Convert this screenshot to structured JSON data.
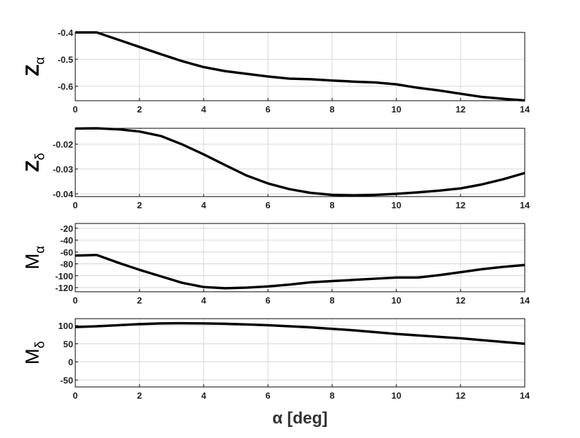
{
  "chart_data": [
    {
      "type": "line",
      "ylabel": "Z",
      "ylabel_sub": "α",
      "x": [
        0,
        0.667,
        1.333,
        2,
        2.667,
        3.333,
        4,
        4.667,
        5.333,
        6,
        6.667,
        7.333,
        8,
        8.667,
        9.333,
        10,
        10.667,
        11.333,
        12,
        12.667,
        13.333,
        14
      ],
      "series": [
        {
          "color": "#000000",
          "values": [
            -0.4,
            -0.4,
            -0.427,
            -0.454,
            -0.481,
            -0.507,
            -0.529,
            -0.544,
            -0.554,
            -0.564,
            -0.572,
            -0.574,
            -0.579,
            -0.583,
            -0.586,
            -0.593,
            -0.606,
            -0.616,
            -0.628,
            -0.64,
            -0.647,
            -0.653
          ]
        }
      ],
      "xlim": [
        0,
        14
      ],
      "xticks": [
        0,
        2,
        4,
        6,
        8,
        10,
        12,
        14
      ],
      "ylim": [
        -0.654,
        -0.4
      ],
      "yticks": [
        -0.6,
        -0.5,
        -0.4
      ],
      "grid": true
    },
    {
      "type": "line",
      "ylabel": "Z",
      "ylabel_sub": "δ",
      "x": [
        0,
        0.667,
        1.333,
        2,
        2.667,
        3.333,
        4,
        4.667,
        5.333,
        6,
        6.667,
        7.333,
        8,
        8.667,
        9.333,
        10,
        10.667,
        11.333,
        12,
        12.667,
        13.333,
        14
      ],
      "series": [
        {
          "color": "#000000",
          "values": [
            -0.0137,
            -0.0136,
            -0.014,
            -0.0149,
            -0.0167,
            -0.0201,
            -0.0241,
            -0.0284,
            -0.0326,
            -0.0358,
            -0.0381,
            -0.0396,
            -0.0404,
            -0.0406,
            -0.0404,
            -0.04,
            -0.0394,
            -0.0387,
            -0.0378,
            -0.0362,
            -0.0341,
            -0.0316
          ]
        }
      ],
      "xlim": [
        0,
        14
      ],
      "xticks": [
        0,
        2,
        4,
        6,
        8,
        10,
        12,
        14
      ],
      "ylim": [
        -0.0411,
        -0.0136
      ],
      "yticks": [
        -0.04,
        -0.03,
        -0.02
      ],
      "grid": true
    },
    {
      "type": "line",
      "ylabel": "M",
      "ylabel_sub": "α",
      "x": [
        0,
        0.667,
        1.333,
        2,
        2.667,
        3.333,
        4,
        4.667,
        5.333,
        6,
        6.667,
        7.333,
        8,
        8.667,
        9.333,
        10,
        10.667,
        11.333,
        12,
        12.667,
        13.333,
        14
      ],
      "series": [
        {
          "color": "#000000",
          "values": [
            -66,
            -65,
            -78,
            -90,
            -101,
            -112,
            -119,
            -121,
            -120,
            -118,
            -115,
            -111,
            -109,
            -107,
            -105,
            -103,
            -103,
            -99,
            -94,
            -89,
            -85,
            -82
          ]
        }
      ],
      "xlim": [
        0,
        14
      ],
      "xticks": [
        0,
        2,
        4,
        6,
        8,
        10,
        12,
        14
      ],
      "ylim": [
        -127,
        -12
      ],
      "yticks": [
        -120,
        -100,
        -80,
        -60,
        -40,
        -20
      ],
      "grid": true
    },
    {
      "type": "line",
      "ylabel": "M",
      "ylabel_sub": "δ",
      "xlabel": "α [deg]",
      "x": [
        0,
        0.667,
        1.333,
        2,
        2.667,
        3.333,
        4,
        4.667,
        5.333,
        6,
        6.667,
        7.333,
        8,
        8.667,
        9.333,
        10,
        10.667,
        11.333,
        12,
        12.667,
        13.333,
        14
      ],
      "series": [
        {
          "color": "#000000",
          "values": [
            96,
            98,
            101,
            104,
            106,
            106.5,
            106,
            105,
            103,
            101,
            98,
            95,
            91,
            87,
            82,
            77,
            73,
            69,
            65,
            60,
            55,
            50
          ]
        }
      ],
      "xlim": [
        0,
        14
      ],
      "xticks": [
        0,
        2,
        4,
        6,
        8,
        10,
        12,
        14
      ],
      "ylim": [
        -69,
        119
      ],
      "yticks": [
        -50,
        0,
        50,
        100
      ],
      "grid": true
    }
  ]
}
